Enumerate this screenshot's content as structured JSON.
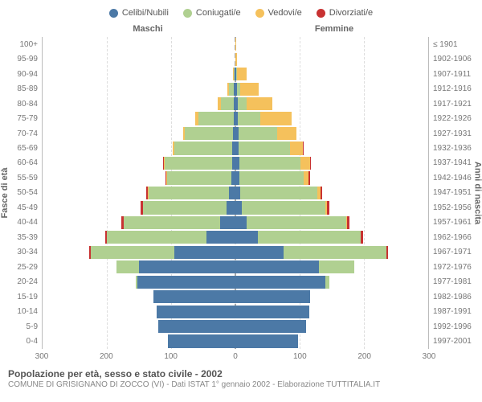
{
  "type": "population-pyramid",
  "legend": [
    {
      "label": "Celibi/Nubili",
      "color": "#4c79a6"
    },
    {
      "label": "Coniugati/e",
      "color": "#b0d091"
    },
    {
      "label": "Vedovi/e",
      "color": "#f5c15c"
    },
    {
      "label": "Divorziati/e",
      "color": "#c83232"
    }
  ],
  "headers": {
    "male": "Maschi",
    "female": "Femmine"
  },
  "axis": {
    "left_title": "Fasce di età",
    "right_title": "Anni di nascita",
    "xmax": 300,
    "xticks_male": [
      300,
      200,
      100,
      0
    ],
    "xticks_female": [
      0,
      100,
      200,
      300
    ],
    "grid_color": "#dddddd",
    "background_color": "#ffffff",
    "tick_fontsize": 10,
    "label_fontsize": 11
  },
  "colors": {
    "celibi": "#4c79a6",
    "coniugati": "#b0d091",
    "vedovi": "#f5c15c",
    "divorziati": "#c83232"
  },
  "rows": [
    {
      "age": "100+",
      "years": "≤ 1901",
      "m": [
        0,
        0,
        0,
        0
      ],
      "f": [
        0,
        0,
        1,
        0
      ]
    },
    {
      "age": "95-99",
      "years": "1902-1906",
      "m": [
        0,
        0,
        0,
        0
      ],
      "f": [
        0,
        0,
        3,
        0
      ]
    },
    {
      "age": "90-94",
      "years": "1907-1911",
      "m": [
        1,
        1,
        2,
        0
      ],
      "f": [
        1,
        1,
        16,
        0
      ]
    },
    {
      "age": "85-89",
      "years": "1912-1916",
      "m": [
        2,
        8,
        3,
        0
      ],
      "f": [
        3,
        5,
        28,
        0
      ]
    },
    {
      "age": "80-84",
      "years": "1917-1921",
      "m": [
        3,
        20,
        4,
        0
      ],
      "f": [
        4,
        14,
        40,
        0
      ]
    },
    {
      "age": "75-79",
      "years": "1922-1926",
      "m": [
        3,
        55,
        4,
        0
      ],
      "f": [
        4,
        35,
        48,
        0
      ]
    },
    {
      "age": "70-74",
      "years": "1927-1931",
      "m": [
        4,
        75,
        2,
        0
      ],
      "f": [
        5,
        60,
        30,
        0
      ]
    },
    {
      "age": "65-69",
      "years": "1932-1936",
      "m": [
        5,
        90,
        2,
        1
      ],
      "f": [
        5,
        80,
        20,
        1
      ]
    },
    {
      "age": "60-64",
      "years": "1937-1941",
      "m": [
        5,
        105,
        1,
        1
      ],
      "f": [
        6,
        95,
        15,
        2
      ]
    },
    {
      "age": "55-59",
      "years": "1942-1946",
      "m": [
        6,
        100,
        1,
        2
      ],
      "f": [
        6,
        100,
        8,
        2
      ]
    },
    {
      "age": "50-54",
      "years": "1947-1951",
      "m": [
        10,
        125,
        1,
        3
      ],
      "f": [
        8,
        120,
        4,
        3
      ]
    },
    {
      "age": "45-49",
      "years": "1952-1956",
      "m": [
        14,
        130,
        0,
        3
      ],
      "f": [
        10,
        130,
        2,
        4
      ]
    },
    {
      "age": "40-44",
      "years": "1957-1961",
      "m": [
        24,
        150,
        0,
        3
      ],
      "f": [
        18,
        155,
        1,
        4
      ]
    },
    {
      "age": "35-39",
      "years": "1962-1966",
      "m": [
        45,
        155,
        0,
        3
      ],
      "f": [
        35,
        160,
        0,
        4
      ]
    },
    {
      "age": "30-34",
      "years": "1967-1971",
      "m": [
        95,
        130,
        0,
        2
      ],
      "f": [
        75,
        160,
        0,
        3
      ]
    },
    {
      "age": "25-29",
      "years": "1972-1976",
      "m": [
        150,
        35,
        0,
        0
      ],
      "f": [
        130,
        55,
        0,
        0
      ]
    },
    {
      "age": "20-24",
      "years": "1977-1981",
      "m": [
        152,
        3,
        0,
        0
      ],
      "f": [
        140,
        6,
        0,
        0
      ]
    },
    {
      "age": "15-19",
      "years": "1982-1986",
      "m": [
        128,
        0,
        0,
        0
      ],
      "f": [
        116,
        0,
        0,
        0
      ]
    },
    {
      "age": "10-14",
      "years": "1987-1991",
      "m": [
        122,
        0,
        0,
        0
      ],
      "f": [
        115,
        0,
        0,
        0
      ]
    },
    {
      "age": "5-9",
      "years": "1992-1996",
      "m": [
        120,
        0,
        0,
        0
      ],
      "f": [
        110,
        0,
        0,
        0
      ]
    },
    {
      "age": "0-4",
      "years": "1997-2001",
      "m": [
        105,
        0,
        0,
        0
      ],
      "f": [
        98,
        0,
        0,
        0
      ]
    }
  ],
  "footer": {
    "title": "Popolazione per età, sesso e stato civile - 2002",
    "subtitle": "COMUNE DI GRISIGNANO DI ZOCCO (VI) - Dati ISTAT 1° gennaio 2002 - Elaborazione TUTTITALIA.IT"
  }
}
